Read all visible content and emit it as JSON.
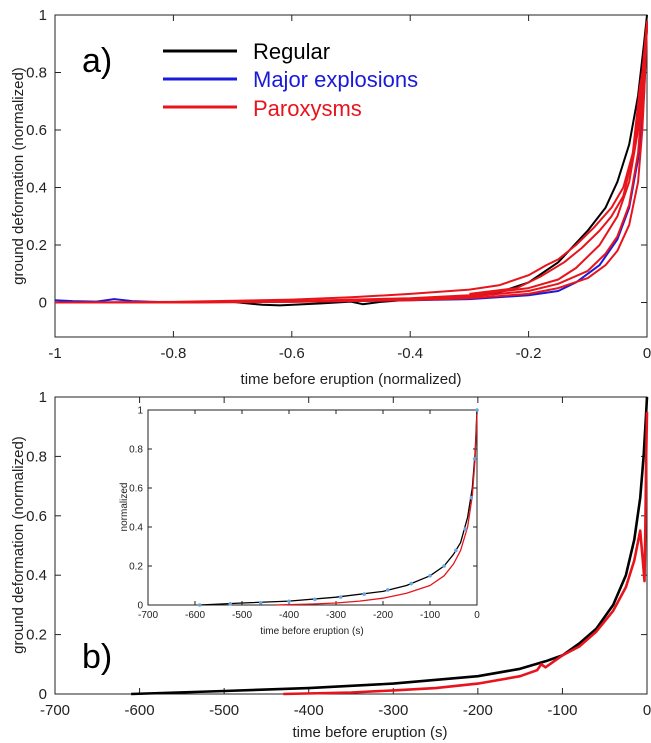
{
  "colors": {
    "regular": "#000000",
    "major": "#1a1adb",
    "paroxysm": "#e8141c",
    "axis": "#222222",
    "inset_points": "#6aa6e0"
  },
  "chart_data": [
    {
      "panel": "a)",
      "type": "line",
      "xlabel": "time before eruption (normalized)",
      "ylabel": "ground deformation (normalized)",
      "xlim": [
        -1,
        0
      ],
      "ylim": [
        -0.12,
        1
      ],
      "xticks": [
        -1,
        -0.8,
        -0.6,
        -0.4,
        -0.2,
        0
      ],
      "xtick_labels": [
        "-1",
        "-0.8",
        "-0.6",
        "-0.4",
        "-0.2",
        "0"
      ],
      "yticks": [
        0,
        0.2,
        0.4,
        0.6,
        0.8,
        1
      ],
      "ytick_labels": [
        "0",
        "0.2",
        "0.4",
        "0.6",
        "0.8",
        "1"
      ],
      "grid": false,
      "legend_position": "top-left",
      "legend": [
        {
          "name": "Regular",
          "color_key": "regular"
        },
        {
          "name": "Major explosions",
          "color_key": "major"
        },
        {
          "name": "Paroxysms",
          "color_key": "paroxysm"
        }
      ],
      "series": [
        {
          "name": "Regular",
          "color_key": "regular",
          "points": [
            [
              -1,
              0
            ],
            [
              -0.9,
              0
            ],
            [
              -0.8,
              0
            ],
            [
              -0.7,
              0.002
            ],
            [
              -0.65,
              -0.008
            ],
            [
              -0.62,
              -0.01
            ],
            [
              -0.55,
              -0.003
            ],
            [
              -0.5,
              0.003
            ],
            [
              -0.48,
              -0.006
            ],
            [
              -0.45,
              0.002
            ],
            [
              -0.4,
              0.01
            ],
            [
              -0.35,
              0.015
            ],
            [
              -0.3,
              0.022
            ],
            [
              -0.25,
              0.035
            ],
            [
              -0.2,
              0.07
            ],
            [
              -0.15,
              0.14
            ],
            [
              -0.1,
              0.25
            ],
            [
              -0.07,
              0.33
            ],
            [
              -0.05,
              0.42
            ],
            [
              -0.03,
              0.55
            ],
            [
              -0.015,
              0.72
            ],
            [
              -0.005,
              0.9
            ],
            [
              0,
              1
            ]
          ]
        },
        {
          "name": "Major explosions",
          "color_key": "major",
          "points": [
            [
              -1,
              0.008
            ],
            [
              -0.97,
              0.005
            ],
            [
              -0.93,
              0.003
            ],
            [
              -0.9,
              0.012
            ],
            [
              -0.87,
              0.005
            ],
            [
              -0.8,
              0
            ],
            [
              -0.7,
              0.004
            ],
            [
              -0.6,
              0.003
            ],
            [
              -0.5,
              0.005
            ],
            [
              -0.4,
              0.008
            ],
            [
              -0.3,
              0.012
            ],
            [
              -0.2,
              0.025
            ],
            [
              -0.15,
              0.04
            ],
            [
              -0.12,
              0.07
            ],
            [
              -0.08,
              0.13
            ],
            [
              -0.05,
              0.22
            ],
            [
              -0.03,
              0.33
            ],
            [
              -0.015,
              0.5
            ],
            [
              -0.005,
              0.72
            ],
            [
              0,
              0.98
            ]
          ]
        },
        {
          "name": "Paroxysms 1",
          "color_key": "paroxysm",
          "points": [
            [
              -1,
              0
            ],
            [
              -0.8,
              0.002
            ],
            [
              -0.6,
              0.01
            ],
            [
              -0.5,
              0.018
            ],
            [
              -0.4,
              0.03
            ],
            [
              -0.3,
              0.045
            ],
            [
              -0.25,
              0.06
            ],
            [
              -0.2,
              0.095
            ],
            [
              -0.17,
              0.13
            ],
            [
              -0.15,
              0.15
            ],
            [
              -0.12,
              0.2
            ],
            [
              -0.09,
              0.26
            ],
            [
              -0.06,
              0.33
            ],
            [
              -0.04,
              0.4
            ],
            [
              -0.02,
              0.55
            ],
            [
              -0.01,
              0.75
            ],
            [
              0,
              0.98
            ]
          ]
        },
        {
          "name": "Paroxysms 2",
          "color_key": "paroxysm",
          "points": [
            [
              -1,
              0
            ],
            [
              -0.8,
              0
            ],
            [
              -0.6,
              0.005
            ],
            [
              -0.4,
              0.015
            ],
            [
              -0.3,
              0.025
            ],
            [
              -0.2,
              0.05
            ],
            [
              -0.15,
              0.08
            ],
            [
              -0.12,
              0.12
            ],
            [
              -0.08,
              0.2
            ],
            [
              -0.05,
              0.3
            ],
            [
              -0.03,
              0.42
            ],
            [
              -0.015,
              0.6
            ],
            [
              -0.005,
              0.82
            ],
            [
              0,
              0.95
            ]
          ]
        },
        {
          "name": "Paroxysms 3",
          "color_key": "paroxysm",
          "points": [
            [
              -1,
              0
            ],
            [
              -0.8,
              0
            ],
            [
              -0.6,
              0.003
            ],
            [
              -0.4,
              0.01
            ],
            [
              -0.3,
              0.02
            ],
            [
              -0.2,
              0.04
            ],
            [
              -0.15,
              0.065
            ],
            [
              -0.1,
              0.11
            ],
            [
              -0.07,
              0.17
            ],
            [
              -0.05,
              0.23
            ],
            [
              -0.03,
              0.34
            ],
            [
              -0.015,
              0.52
            ],
            [
              -0.005,
              0.78
            ],
            [
              0,
              0.96
            ]
          ]
        },
        {
          "name": "Paroxysms 4",
          "color_key": "paroxysm",
          "points": [
            [
              -1,
              0
            ],
            [
              -0.8,
              0
            ],
            [
              -0.6,
              0.002
            ],
            [
              -0.4,
              0.008
            ],
            [
              -0.3,
              0.015
            ],
            [
              -0.2,
              0.03
            ],
            [
              -0.15,
              0.05
            ],
            [
              -0.1,
              0.085
            ],
            [
              -0.07,
              0.13
            ],
            [
              -0.05,
              0.18
            ],
            [
              -0.03,
              0.27
            ],
            [
              -0.015,
              0.42
            ],
            [
              -0.008,
              0.6
            ],
            [
              -0.003,
              0.8
            ],
            [
              0,
              0.97
            ]
          ]
        },
        {
          "name": "Paroxysms 5",
          "color_key": "paroxysm",
          "points": [
            [
              -0.3,
              0.03
            ],
            [
              -0.22,
              0.05
            ],
            [
              -0.18,
              0.09
            ],
            [
              -0.14,
              0.14
            ],
            [
              -0.11,
              0.19
            ],
            [
              -0.08,
              0.25
            ],
            [
              -0.06,
              0.3
            ],
            [
              -0.04,
              0.37
            ],
            [
              -0.025,
              0.5
            ],
            [
              -0.012,
              0.75
            ],
            [
              -0.006,
              0.82
            ],
            [
              -0.003,
              0.9
            ],
            [
              0,
              0.95
            ]
          ]
        }
      ]
    },
    {
      "panel": "b)",
      "type": "line",
      "xlabel": "time before eruption (s)",
      "ylabel": "ground deformation (normalized)",
      "xlim": [
        -700,
        0
      ],
      "ylim": [
        0,
        1
      ],
      "xticks": [
        -700,
        -600,
        -500,
        -400,
        -300,
        -200,
        -100,
        0
      ],
      "xtick_labels": [
        "-700",
        "-600",
        "-500",
        "-400",
        "-300",
        "-200",
        "-100",
        "0"
      ],
      "yticks": [
        0,
        0.2,
        0.4,
        0.6,
        0.8,
        1
      ],
      "ytick_labels": [
        "0",
        "0.2",
        "0.4",
        "0.6",
        "0.8",
        "1"
      ],
      "grid": false,
      "series": [
        {
          "name": "Regular",
          "color_key": "regular",
          "points": [
            [
              -610,
              0
            ],
            [
              -500,
              0.01
            ],
            [
              -400,
              0.02
            ],
            [
              -300,
              0.035
            ],
            [
              -200,
              0.06
            ],
            [
              -150,
              0.085
            ],
            [
              -120,
              0.11
            ],
            [
              -100,
              0.13
            ],
            [
              -80,
              0.17
            ],
            [
              -60,
              0.22
            ],
            [
              -40,
              0.3
            ],
            [
              -25,
              0.4
            ],
            [
              -15,
              0.52
            ],
            [
              -8,
              0.66
            ],
            [
              -4,
              0.8
            ],
            [
              -1.5,
              0.92
            ],
            [
              0,
              1
            ]
          ]
        },
        {
          "name": "Paroxysms",
          "color_key": "paroxysm",
          "points": [
            [
              -430,
              0
            ],
            [
              -350,
              0.005
            ],
            [
              -300,
              0.012
            ],
            [
              -250,
              0.02
            ],
            [
              -200,
              0.035
            ],
            [
              -150,
              0.06
            ],
            [
              -130,
              0.08
            ],
            [
              -125,
              0.1
            ],
            [
              -120,
              0.09
            ],
            [
              -110,
              0.11
            ],
            [
              -100,
              0.13
            ],
            [
              -80,
              0.16
            ],
            [
              -60,
              0.21
            ],
            [
              -40,
              0.28
            ],
            [
              -25,
              0.36
            ],
            [
              -15,
              0.45
            ],
            [
              -8,
              0.55
            ],
            [
              -5,
              0.45
            ],
            [
              -3,
              0.38
            ],
            [
              -2,
              0.55
            ],
            [
              -1,
              0.8
            ],
            [
              0,
              0.95
            ]
          ]
        }
      ]
    },
    {
      "panel": "inset",
      "type": "line",
      "xlabel": "time before eruption (s)",
      "ylabel": "normalized",
      "xlim": [
        -700,
        0
      ],
      "ylim": [
        0,
        1
      ],
      "xticks": [
        -700,
        -600,
        -500,
        -400,
        -300,
        -200,
        -100,
        0
      ],
      "xtick_labels": [
        "-700",
        "-600",
        "-500",
        "-400",
        "-300",
        "-200",
        "-100",
        "0"
      ],
      "yticks": [
        0,
        0.2,
        0.4,
        0.6,
        0.8,
        1
      ],
      "ytick_labels": [
        "0",
        "0.2",
        "0.4",
        "0.6",
        "0.8",
        "1"
      ],
      "grid": false,
      "series": [
        {
          "name": "Regular",
          "color_key": "regular",
          "points": [
            [
              -590,
              0
            ],
            [
              -500,
              0.01
            ],
            [
              -400,
              0.02
            ],
            [
              -300,
              0.04
            ],
            [
              -200,
              0.07
            ],
            [
              -150,
              0.1
            ],
            [
              -100,
              0.15
            ],
            [
              -70,
              0.2
            ],
            [
              -50,
              0.26
            ],
            [
              -35,
              0.32
            ],
            [
              -20,
              0.45
            ],
            [
              -10,
              0.6
            ],
            [
              -4,
              0.78
            ],
            [
              0,
              1
            ]
          ]
        },
        {
          "name": "Paroxysms",
          "color_key": "paroxysm",
          "points": [
            [
              -430,
              0
            ],
            [
              -350,
              0.005
            ],
            [
              -300,
              0.01
            ],
            [
              -250,
              0.02
            ],
            [
              -200,
              0.035
            ],
            [
              -150,
              0.06
            ],
            [
              -100,
              0.1
            ],
            [
              -70,
              0.15
            ],
            [
              -50,
              0.21
            ],
            [
              -35,
              0.28
            ],
            [
              -20,
              0.4
            ],
            [
              -10,
              0.56
            ],
            [
              -4,
              0.75
            ],
            [
              0,
              0.98
            ]
          ]
        },
        {
          "name": "markers",
          "color_key": "inset_points",
          "markers_only": true,
          "points": [
            [
              -590,
              0
            ],
            [
              -525,
              0.006
            ],
            [
              -460,
              0.011
            ],
            [
              -400,
              0.019
            ],
            [
              -345,
              0.029
            ],
            [
              -290,
              0.041
            ],
            [
              -240,
              0.056
            ],
            [
              -190,
              0.077
            ],
            [
              -140,
              0.11
            ],
            [
              -100,
              0.15
            ],
            [
              -70,
              0.2
            ],
            [
              -45,
              0.28
            ],
            [
              -25,
              0.39
            ],
            [
              -12,
              0.55
            ],
            [
              -5,
              0.75
            ],
            [
              0,
              1
            ]
          ]
        }
      ]
    }
  ]
}
